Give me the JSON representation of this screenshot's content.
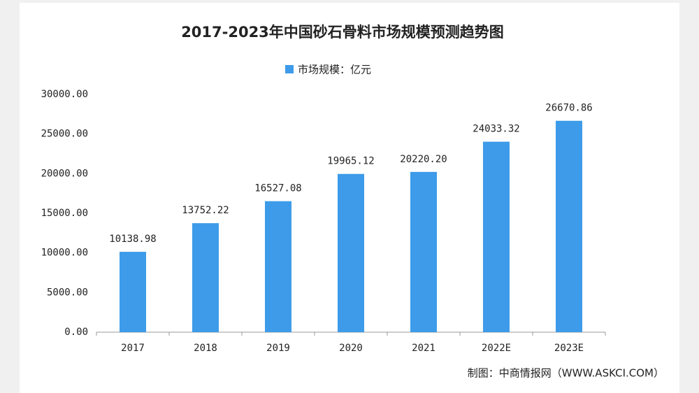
{
  "chart_data": {
    "type": "bar",
    "title": "2017-2023年中国砂石骨料市场规模预测趋势图",
    "categories": [
      "2017",
      "2018",
      "2019",
      "2020",
      "2021",
      "2022E",
      "2023E"
    ],
    "series": [
      {
        "name": "市场规模：亿元",
        "color": "#3d9be9",
        "values": [
          10138.98,
          13752.22,
          16527.08,
          19965.12,
          20220.2,
          24033.32,
          26670.86
        ],
        "value_labels": [
          "10138.98",
          "13752.22",
          "16527.08",
          "19965.12",
          "20220.20",
          "24033.32",
          "26670.86"
        ]
      }
    ],
    "ylim": [
      0,
      30000
    ],
    "yticks": [
      {
        "value": 0,
        "label": "0.00"
      },
      {
        "value": 5000,
        "label": "5000.00"
      },
      {
        "value": 10000,
        "label": "10000.00"
      },
      {
        "value": 15000,
        "label": "15000.00"
      },
      {
        "value": 20000,
        "label": "20000.00"
      },
      {
        "value": 25000,
        "label": "25000.00"
      },
      {
        "value": 30000,
        "label": "30000.00"
      }
    ],
    "grid": false,
    "legend": "top",
    "source": "制图：中商情报网（WWW.ASKCI.COM）"
  }
}
